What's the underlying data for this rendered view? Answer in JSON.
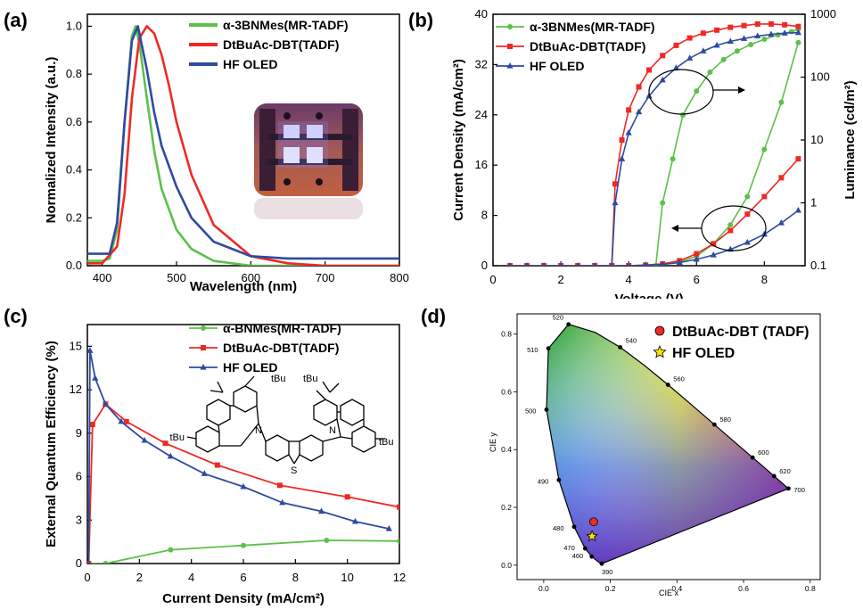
{
  "colors": {
    "green": "#5cc04a",
    "red": "#ee2a24",
    "blue": "#2f4aa0",
    "axis": "#000000"
  },
  "chart_data": [
    {
      "panel": "(a)",
      "type": "line",
      "xlabel": "Wavelength (nm)",
      "ylabel": "Normalized Intensity (a.u.)",
      "xlim": [
        380,
        800
      ],
      "ylim": [
        0,
        1.05
      ],
      "xticks": [
        "400",
        "500",
        "600",
        "700",
        "800"
      ],
      "yticks": [
        "0.0",
        "0.2",
        "0.4",
        "0.6",
        "0.8",
        "1.0"
      ],
      "legend_position": "top-right",
      "inset": "photo of lit OLED device",
      "series": [
        {
          "name": "α-3BNMes(MR-TADF)",
          "color": "#5cc04a",
          "x": [
            380,
            400,
            410,
            420,
            430,
            440,
            445,
            450,
            460,
            470,
            480,
            500,
            520,
            550,
            600,
            650,
            700,
            800
          ],
          "y": [
            0.02,
            0.02,
            0.03,
            0.15,
            0.6,
            0.96,
            1.0,
            0.93,
            0.7,
            0.48,
            0.32,
            0.15,
            0.07,
            0.02,
            0.0,
            0.0,
            0.0,
            0.0
          ]
        },
        {
          "name": "DtBuAc-DBT(TADF)",
          "color": "#ee2a24",
          "x": [
            380,
            400,
            420,
            430,
            440,
            450,
            460,
            470,
            480,
            490,
            500,
            520,
            550,
            600,
            650,
            700,
            800
          ],
          "y": [
            0.01,
            0.01,
            0.08,
            0.3,
            0.7,
            0.95,
            1.0,
            0.97,
            0.88,
            0.75,
            0.6,
            0.38,
            0.17,
            0.04,
            0.01,
            0.0,
            0.0
          ]
        },
        {
          "name": "HF OLED",
          "color": "#2f4aa0",
          "x": [
            380,
            400,
            410,
            420,
            430,
            440,
            448,
            460,
            470,
            480,
            500,
            520,
            550,
            600,
            650,
            700,
            800
          ],
          "y": [
            0.05,
            0.05,
            0.05,
            0.18,
            0.6,
            0.94,
            1.0,
            0.82,
            0.64,
            0.5,
            0.33,
            0.2,
            0.1,
            0.04,
            0.03,
            0.03,
            0.03
          ]
        }
      ]
    },
    {
      "panel": "(b)",
      "type": "line",
      "xlabel": "Voltage (V)",
      "ylabel": "Current Density (mA/cm²)",
      "ylabel_right": "Luminance (cd/m²)",
      "xlim": [
        0,
        9.2
      ],
      "ylim": [
        0,
        40
      ],
      "y2lim_log": [
        0.1,
        1000
      ],
      "xticks": [
        "0",
        "2",
        "4",
        "6",
        "8"
      ],
      "yticks": [
        "0",
        "8",
        "16",
        "24",
        "32",
        "40"
      ],
      "y2ticks": [
        "0.1",
        "1",
        "10",
        "100",
        "1000"
      ],
      "legend_position": "top-left",
      "series": [
        {
          "name": "α-3BNMes(MR-TADF)",
          "color": "#5cc04a",
          "marker": "circle",
          "current_density": {
            "x": [
              0.5,
              1,
              1.5,
              2,
              2.5,
              3,
              3.5,
              4,
              4.5,
              5,
              5.5,
              6,
              6.5,
              7,
              7.5,
              8,
              8.5,
              9
            ],
            "y": [
              0,
              0,
              0,
              0,
              0,
              0,
              0,
              0,
              0,
              0.2,
              0.6,
              1.5,
              3.5,
              6.5,
              11,
              18.5,
              26,
              35.5
            ]
          },
          "luminance": {
            "x": [
              4.8,
              5.0,
              5.3,
              5.6,
              6.0,
              6.4,
              6.8,
              7.2,
              7.6,
              8.0,
              8.4,
              8.8,
              9.0
            ],
            "y": [
              0.1,
              1,
              5,
              25,
              60,
              120,
              190,
              260,
              330,
              400,
              470,
              530,
              580
            ]
          }
        },
        {
          "name": "DtBuAc-DBT(TADF)",
          "color": "#ee2a24",
          "marker": "square",
          "current_density": {
            "x": [
              0.5,
              1,
              1.5,
              2,
              2.5,
              3,
              3.5,
              4,
              4.5,
              5,
              5.5,
              6,
              6.5,
              7,
              7.5,
              8,
              8.5,
              9
            ],
            "y": [
              0,
              0,
              0,
              0,
              0,
              0,
              0,
              0,
              0.1,
              0.3,
              0.8,
              1.9,
              3.5,
              5.6,
              8.2,
              11,
              14,
              17
            ]
          },
          "luminance": {
            "x": [
              3.5,
              3.6,
              3.8,
              4.0,
              4.3,
              4.6,
              5.0,
              5.4,
              5.8,
              6.2,
              6.6,
              7.0,
              7.4,
              7.8,
              8.2,
              8.6,
              9.0
            ],
            "y": [
              0.1,
              2,
              10,
              30,
              70,
              130,
              220,
              320,
              420,
              500,
              560,
              620,
              660,
              700,
              700,
              680,
              640
            ]
          }
        },
        {
          "name": "HF OLED",
          "color": "#2f4aa0",
          "marker": "triangle",
          "current_density": {
            "x": [
              0.5,
              1,
              1.5,
              2,
              2.5,
              3,
              3.5,
              4,
              4.5,
              5,
              5.5,
              6,
              6.5,
              7,
              7.5,
              8,
              8.5,
              9
            ],
            "y": [
              0,
              0,
              0,
              0,
              0,
              0,
              0,
              0,
              0.1,
              0.2,
              0.5,
              1.0,
              1.7,
              2.6,
              3.7,
              5.0,
              6.8,
              8.8
            ]
          },
          "luminance": {
            "x": [
              3.5,
              3.6,
              3.8,
              4.0,
              4.3,
              4.6,
              5.0,
              5.4,
              5.8,
              6.2,
              6.6,
              7.0,
              7.4,
              7.8,
              8.2,
              8.6,
              9.0
            ],
            "y": [
              0.1,
              1,
              5,
              13,
              28,
              50,
              90,
              140,
              200,
              260,
              320,
              370,
              410,
              450,
              480,
              500,
              510
            ]
          }
        }
      ]
    },
    {
      "panel": "(c)",
      "type": "line",
      "xlabel": "Current Density (mA/cm²)",
      "ylabel": "External Quantum Efficiency (%)",
      "xlim": [
        0,
        12
      ],
      "ylim": [
        0,
        16.5
      ],
      "xticks": [
        "0",
        "2",
        "4",
        "6",
        "8",
        "10",
        "12"
      ],
      "yticks": [
        "0",
        "3",
        "6",
        "9",
        "12",
        "15"
      ],
      "legend_position": "top-right",
      "inset": "chemical structure with tBu groups",
      "series": [
        {
          "name": "α-BNMes(MR-TADF)",
          "color": "#5cc04a",
          "marker": "circle",
          "x": [
            0.05,
            0.7,
            3.2,
            6,
            9.2,
            12
          ],
          "y": [
            0.0,
            0.0,
            0.95,
            1.25,
            1.6,
            1.55
          ]
        },
        {
          "name": "DtBuAc-DBT(TADF)",
          "color": "#ee2a24",
          "marker": "square",
          "x": [
            0.05,
            0.2,
            0.7,
            1.5,
            3,
            5,
            7.4,
            10,
            12
          ],
          "y": [
            0.0,
            9.6,
            11.0,
            9.8,
            8.3,
            6.8,
            5.4,
            4.6,
            3.9
          ]
        },
        {
          "name": "HF OLED",
          "color": "#2f4aa0",
          "marker": "triangle",
          "x": [
            0.05,
            0.1,
            0.3,
            0.7,
            1.3,
            2.2,
            3.2,
            4.5,
            6,
            7.5,
            9,
            10.3,
            11.6
          ],
          "y": [
            0.0,
            14.7,
            12.8,
            11.0,
            9.8,
            8.5,
            7.4,
            6.2,
            5.3,
            4.2,
            3.6,
            2.9,
            2.4
          ]
        }
      ]
    },
    {
      "panel": "(d)",
      "type": "scatter",
      "xlabel": "CIE x",
      "ylabel": "CIE y",
      "xlim": [
        -0.08,
        0.83
      ],
      "ylim": [
        -0.05,
        0.87
      ],
      "xticks": [
        "0.0",
        "0.2",
        "0.4",
        "0.6",
        "0.8"
      ],
      "yticks": [
        "0.0",
        "0.2",
        "0.4",
        "0.6",
        "0.8"
      ],
      "legend_position": "top-right",
      "locus_wavelength_labels": [
        "390",
        "460",
        "470",
        "480",
        "490",
        "500",
        "510",
        "520",
        "540",
        "560",
        "580",
        "600",
        "620",
        "700"
      ],
      "series": [
        {
          "name": "DtBuAc-DBT (TADF)",
          "color": "#ee2a24",
          "marker": "circle",
          "x": [
            0.15
          ],
          "y": [
            0.15
          ]
        },
        {
          "name": "HF OLED",
          "color": "#ffe100",
          "marker": "star",
          "x": [
            0.145
          ],
          "y": [
            0.1
          ]
        }
      ]
    }
  ]
}
